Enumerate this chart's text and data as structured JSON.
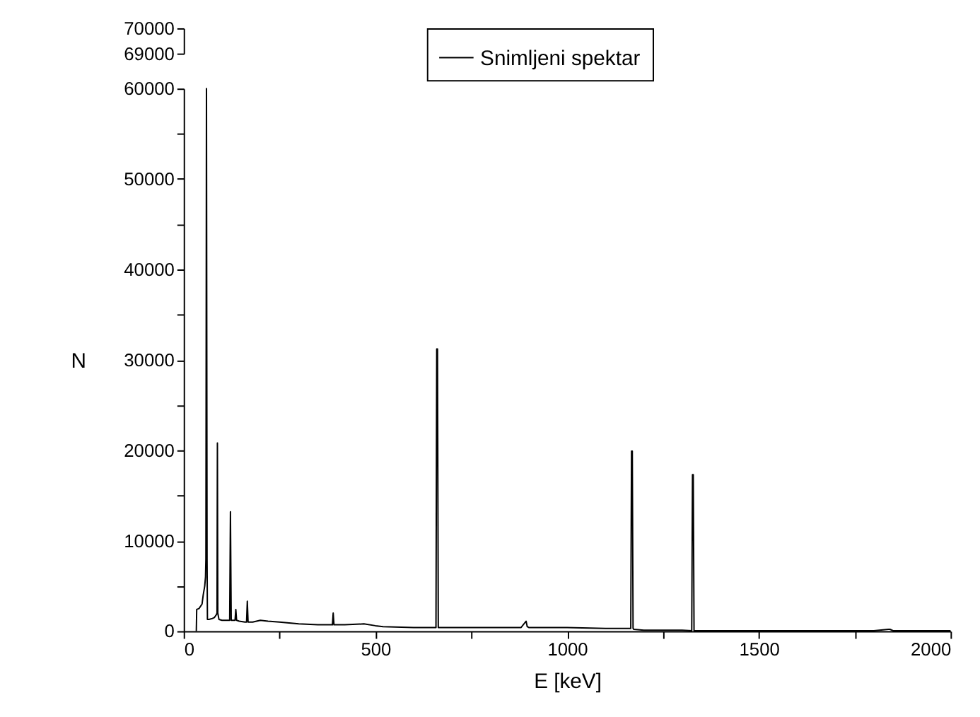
{
  "chart_data": [
    {
      "type": "line",
      "xlim": [
        0,
        2000
      ],
      "ylim": [
        69000,
        70000
      ],
      "yticks": [
        69000,
        70000
      ],
      "tick_labels": "y"
    },
    {
      "type": "line",
      "xlabel": "E [keV]",
      "ylabel": "N",
      "legend": "top",
      "grid": false,
      "marker": "none",
      "line_style": "solid",
      "xlim": [
        0,
        2000
      ],
      "ylim": [
        0,
        60000
      ],
      "xticks": [
        0,
        {
          "value": 250,
          "label": null
        },
        500,
        {
          "value": 750,
          "label": null
        },
        1000,
        {
          "value": 1250,
          "label": null
        },
        1500,
        {
          "value": 1750,
          "label": null
        },
        2000
      ],
      "yticks": [
        0,
        {
          "value": 5000,
          "label": null
        },
        10000,
        {
          "value": 15000,
          "label": null
        },
        20000,
        {
          "value": 25000,
          "label": null
        },
        30000,
        {
          "value": 35000,
          "label": null
        },
        40000,
        {
          "value": 45000,
          "label": null
        },
        50000,
        {
          "value": 55000,
          "label": null
        },
        60000
      ],
      "series": [
        {
          "name": "Snimljeni spektar",
          "color": "#000000",
          "x": [
            33,
            34,
            40,
            48,
            51,
            55,
            57,
            58,
            59.5,
            61,
            62,
            66,
            75,
            80,
            85,
            87,
            88,
            89,
            92,
            100,
            110,
            120,
            122,
            124,
            130,
            134,
            136,
            138,
            145,
            160,
            164,
            166,
            168,
            180,
            200,
            220,
            250,
            300,
            350,
            388,
            390,
            392,
            420,
            470,
            500,
            520,
            600,
            650,
            658,
            660,
            662,
            664,
            666,
            700,
            800,
            880,
            893,
            896,
            900,
            1000,
            1100,
            1150,
            1166,
            1168,
            1170,
            1172,
            1174,
            1200,
            1250,
            1300,
            1325,
            1327,
            1329,
            1331,
            1333,
            1400,
            1600,
            1800,
            1838,
            1842,
            1850,
            2000
          ],
          "values": [
            0,
            2400,
            2500,
            3000,
            4000,
            5000,
            6000,
            8000,
            60000,
            8000,
            1300,
            1300,
            1400,
            1500,
            1800,
            2000,
            20800,
            2000,
            1300,
            1200,
            1200,
            1200,
            13200,
            1200,
            1200,
            1200,
            2400,
            1200,
            1100,
            1000,
            1000,
            3300,
            1000,
            1000,
            1200,
            1100,
            1000,
            800,
            700,
            700,
            2000,
            700,
            700,
            800,
            600,
            500,
            400,
            400,
            400,
            31200,
            31200,
            400,
            400,
            400,
            400,
            400,
            1100,
            500,
            400,
            400,
            300,
            300,
            300,
            19900,
            19900,
            300,
            200,
            100,
            100,
            100,
            50,
            17300,
            17300,
            50,
            50,
            50,
            50,
            50,
            200,
            200,
            50,
            50
          ]
        }
      ]
    }
  ]
}
